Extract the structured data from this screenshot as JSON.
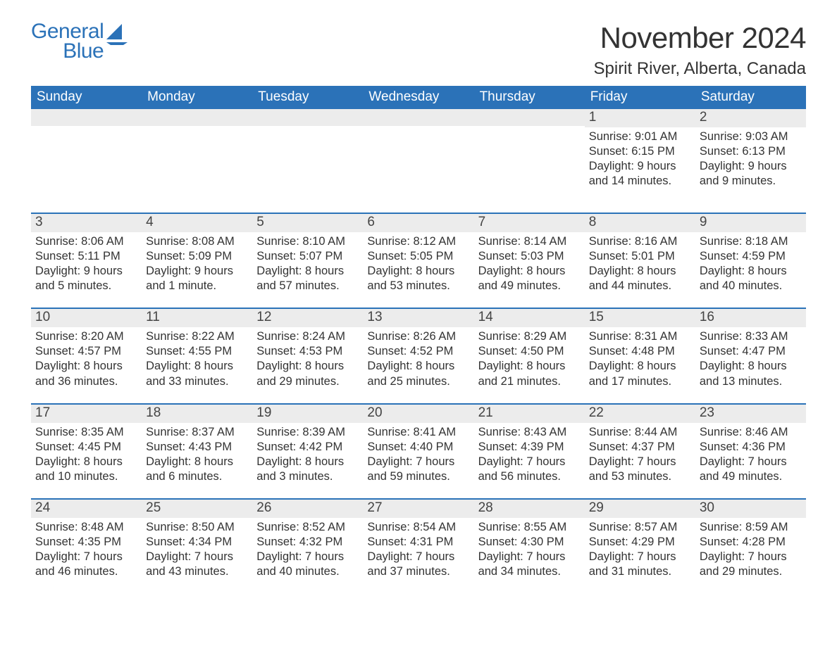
{
  "logo": {
    "general": "General",
    "blue": "Blue"
  },
  "title": "November 2024",
  "location": "Spirit River, Alberta, Canada",
  "colors": {
    "header_bg": "#2b72b8",
    "header_text": "#ffffff",
    "daynum_bg": "#ececec",
    "border": "#2b72b8",
    "body_text": "#333333",
    "logo": "#2b72b8",
    "page_bg": "#ffffff"
  },
  "typography": {
    "month_title_fontsize": 42,
    "location_fontsize": 24,
    "dow_fontsize": 19,
    "daynum_fontsize": 19,
    "body_fontsize": 16.5,
    "font_family": "Arial"
  },
  "days_of_week": [
    "Sunday",
    "Monday",
    "Tuesday",
    "Wednesday",
    "Thursday",
    "Friday",
    "Saturday"
  ],
  "weeks": [
    [
      null,
      null,
      null,
      null,
      null,
      {
        "n": "1",
        "sunrise": "Sunrise: 9:01 AM",
        "sunset": "Sunset: 6:15 PM",
        "dl1": "Daylight: 9 hours",
        "dl2": "and 14 minutes."
      },
      {
        "n": "2",
        "sunrise": "Sunrise: 9:03 AM",
        "sunset": "Sunset: 6:13 PM",
        "dl1": "Daylight: 9 hours",
        "dl2": "and 9 minutes."
      }
    ],
    [
      {
        "n": "3",
        "sunrise": "Sunrise: 8:06 AM",
        "sunset": "Sunset: 5:11 PM",
        "dl1": "Daylight: 9 hours",
        "dl2": "and 5 minutes."
      },
      {
        "n": "4",
        "sunrise": "Sunrise: 8:08 AM",
        "sunset": "Sunset: 5:09 PM",
        "dl1": "Daylight: 9 hours",
        "dl2": "and 1 minute."
      },
      {
        "n": "5",
        "sunrise": "Sunrise: 8:10 AM",
        "sunset": "Sunset: 5:07 PM",
        "dl1": "Daylight: 8 hours",
        "dl2": "and 57 minutes."
      },
      {
        "n": "6",
        "sunrise": "Sunrise: 8:12 AM",
        "sunset": "Sunset: 5:05 PM",
        "dl1": "Daylight: 8 hours",
        "dl2": "and 53 minutes."
      },
      {
        "n": "7",
        "sunrise": "Sunrise: 8:14 AM",
        "sunset": "Sunset: 5:03 PM",
        "dl1": "Daylight: 8 hours",
        "dl2": "and 49 minutes."
      },
      {
        "n": "8",
        "sunrise": "Sunrise: 8:16 AM",
        "sunset": "Sunset: 5:01 PM",
        "dl1": "Daylight: 8 hours",
        "dl2": "and 44 minutes."
      },
      {
        "n": "9",
        "sunrise": "Sunrise: 8:18 AM",
        "sunset": "Sunset: 4:59 PM",
        "dl1": "Daylight: 8 hours",
        "dl2": "and 40 minutes."
      }
    ],
    [
      {
        "n": "10",
        "sunrise": "Sunrise: 8:20 AM",
        "sunset": "Sunset: 4:57 PM",
        "dl1": "Daylight: 8 hours",
        "dl2": "and 36 minutes."
      },
      {
        "n": "11",
        "sunrise": "Sunrise: 8:22 AM",
        "sunset": "Sunset: 4:55 PM",
        "dl1": "Daylight: 8 hours",
        "dl2": "and 33 minutes."
      },
      {
        "n": "12",
        "sunrise": "Sunrise: 8:24 AM",
        "sunset": "Sunset: 4:53 PM",
        "dl1": "Daylight: 8 hours",
        "dl2": "and 29 minutes."
      },
      {
        "n": "13",
        "sunrise": "Sunrise: 8:26 AM",
        "sunset": "Sunset: 4:52 PM",
        "dl1": "Daylight: 8 hours",
        "dl2": "and 25 minutes."
      },
      {
        "n": "14",
        "sunrise": "Sunrise: 8:29 AM",
        "sunset": "Sunset: 4:50 PM",
        "dl1": "Daylight: 8 hours",
        "dl2": "and 21 minutes."
      },
      {
        "n": "15",
        "sunrise": "Sunrise: 8:31 AM",
        "sunset": "Sunset: 4:48 PM",
        "dl1": "Daylight: 8 hours",
        "dl2": "and 17 minutes."
      },
      {
        "n": "16",
        "sunrise": "Sunrise: 8:33 AM",
        "sunset": "Sunset: 4:47 PM",
        "dl1": "Daylight: 8 hours",
        "dl2": "and 13 minutes."
      }
    ],
    [
      {
        "n": "17",
        "sunrise": "Sunrise: 8:35 AM",
        "sunset": "Sunset: 4:45 PM",
        "dl1": "Daylight: 8 hours",
        "dl2": "and 10 minutes."
      },
      {
        "n": "18",
        "sunrise": "Sunrise: 8:37 AM",
        "sunset": "Sunset: 4:43 PM",
        "dl1": "Daylight: 8 hours",
        "dl2": "and 6 minutes."
      },
      {
        "n": "19",
        "sunrise": "Sunrise: 8:39 AM",
        "sunset": "Sunset: 4:42 PM",
        "dl1": "Daylight: 8 hours",
        "dl2": "and 3 minutes."
      },
      {
        "n": "20",
        "sunrise": "Sunrise: 8:41 AM",
        "sunset": "Sunset: 4:40 PM",
        "dl1": "Daylight: 7 hours",
        "dl2": "and 59 minutes."
      },
      {
        "n": "21",
        "sunrise": "Sunrise: 8:43 AM",
        "sunset": "Sunset: 4:39 PM",
        "dl1": "Daylight: 7 hours",
        "dl2": "and 56 minutes."
      },
      {
        "n": "22",
        "sunrise": "Sunrise: 8:44 AM",
        "sunset": "Sunset: 4:37 PM",
        "dl1": "Daylight: 7 hours",
        "dl2": "and 53 minutes."
      },
      {
        "n": "23",
        "sunrise": "Sunrise: 8:46 AM",
        "sunset": "Sunset: 4:36 PM",
        "dl1": "Daylight: 7 hours",
        "dl2": "and 49 minutes."
      }
    ],
    [
      {
        "n": "24",
        "sunrise": "Sunrise: 8:48 AM",
        "sunset": "Sunset: 4:35 PM",
        "dl1": "Daylight: 7 hours",
        "dl2": "and 46 minutes."
      },
      {
        "n": "25",
        "sunrise": "Sunrise: 8:50 AM",
        "sunset": "Sunset: 4:34 PM",
        "dl1": "Daylight: 7 hours",
        "dl2": "and 43 minutes."
      },
      {
        "n": "26",
        "sunrise": "Sunrise: 8:52 AM",
        "sunset": "Sunset: 4:32 PM",
        "dl1": "Daylight: 7 hours",
        "dl2": "and 40 minutes."
      },
      {
        "n": "27",
        "sunrise": "Sunrise: 8:54 AM",
        "sunset": "Sunset: 4:31 PM",
        "dl1": "Daylight: 7 hours",
        "dl2": "and 37 minutes."
      },
      {
        "n": "28",
        "sunrise": "Sunrise: 8:55 AM",
        "sunset": "Sunset: 4:30 PM",
        "dl1": "Daylight: 7 hours",
        "dl2": "and 34 minutes."
      },
      {
        "n": "29",
        "sunrise": "Sunrise: 8:57 AM",
        "sunset": "Sunset: 4:29 PM",
        "dl1": "Daylight: 7 hours",
        "dl2": "and 31 minutes."
      },
      {
        "n": "30",
        "sunrise": "Sunrise: 8:59 AM",
        "sunset": "Sunset: 4:28 PM",
        "dl1": "Daylight: 7 hours",
        "dl2": "and 29 minutes."
      }
    ]
  ]
}
